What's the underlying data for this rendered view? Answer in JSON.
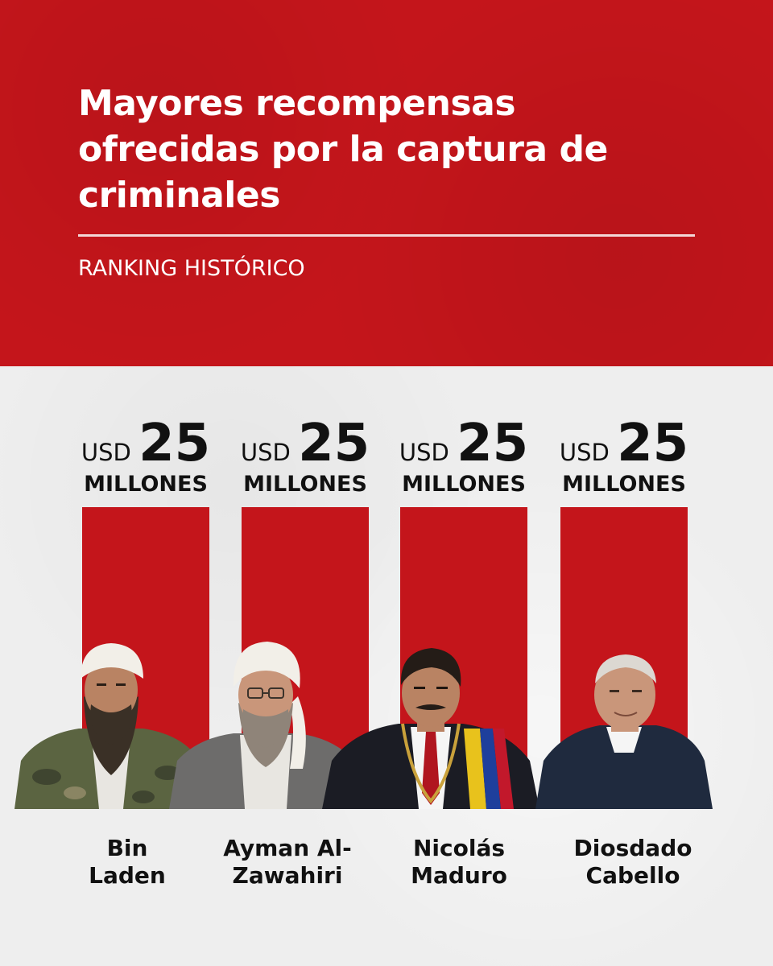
{
  "header": {
    "title": "Mayores recompensas ofrecidas por la captura de criminales",
    "subtitle": "RANKING HISTÓRICO"
  },
  "colors": {
    "header_red": "#c4151b",
    "bar_red": "#c4151b",
    "background": "#eeeeee",
    "text_dark": "#111111",
    "text_light": "#ffffff"
  },
  "chart_data": {
    "type": "bar",
    "title": "Mayores recompensas ofrecidas por la captura de criminales",
    "subtitle": "RANKING HISTÓRICO",
    "categories": [
      "Bin Laden",
      "Ayman Al-Zawahiri",
      "Nicolás Maduro",
      "Diosdado Cabello"
    ],
    "category_lines": [
      [
        "Bin",
        "Laden"
      ],
      [
        "Ayman Al-",
        "Zawahiri"
      ],
      [
        "Nicolás",
        "Maduro"
      ],
      [
        "Diosdado",
        "Cabello"
      ]
    ],
    "values": [
      25,
      25,
      25,
      25
    ],
    "value_prefix": "USD",
    "value_unit": "MILLONES",
    "ylim": [
      0,
      25
    ],
    "grid": false,
    "legend": "none",
    "portraits": [
      "bin-laden-portrait",
      "al-zawahiri-portrait",
      "maduro-portrait",
      "cabello-portrait"
    ]
  }
}
